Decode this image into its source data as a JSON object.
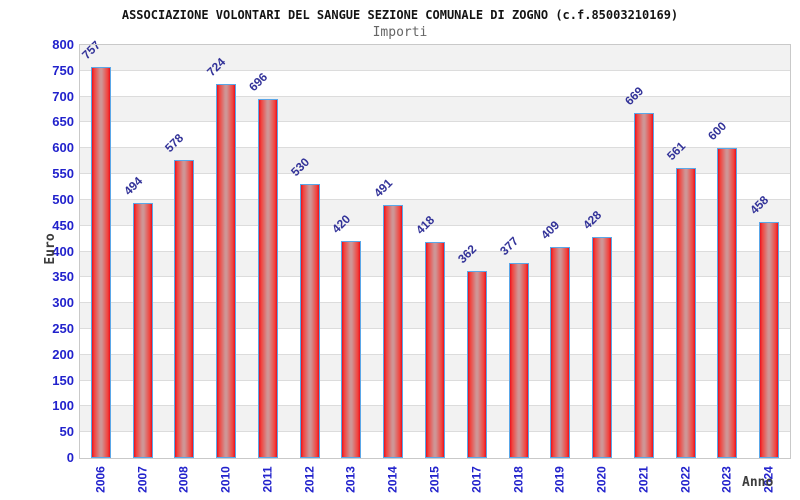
{
  "title": "ASSOCIAZIONE VOLONTARI DEL SANGUE SEZIONE COMUNALE DI ZOGNO (c.f.85003210169)",
  "subtitle": "Importi",
  "chart_data": {
    "type": "bar",
    "categories": [
      "2006",
      "2007",
      "2008",
      "2010",
      "2011",
      "2012",
      "2013",
      "2014",
      "2015",
      "2017",
      "2018",
      "2019",
      "2020",
      "2021",
      "2022",
      "2023",
      "2024"
    ],
    "values": [
      757,
      494,
      578,
      724,
      696,
      530,
      420,
      491,
      418,
      362,
      377,
      409,
      428,
      669,
      561,
      600,
      458
    ],
    "title": "ASSOCIAZIONE VOLONTARI DEL SANGUE SEZIONE COMUNALE DI ZOGNO (c.f.85003210169)",
    "subtitle": "Importi",
    "xlabel": "Anno",
    "ylabel": "Euro",
    "ylim": [
      0,
      800
    ],
    "ytick_step": 50,
    "grid": true,
    "legend": false,
    "bar_labels_shown": true
  },
  "colors": {
    "tick_label": "#2222cc",
    "value_label": "#333399",
    "bar_border": "#5aa7e8",
    "bar_edge": "#e8101e",
    "bar_mid": "#f2413c",
    "bar_center": "#cf9595",
    "band_alt": "#f2f2f2",
    "band_base": "#ffffff",
    "gridline": "#dcdcdc",
    "title": "#141414",
    "subtitle": "#666666",
    "axis_title": "#3d3d3d"
  }
}
